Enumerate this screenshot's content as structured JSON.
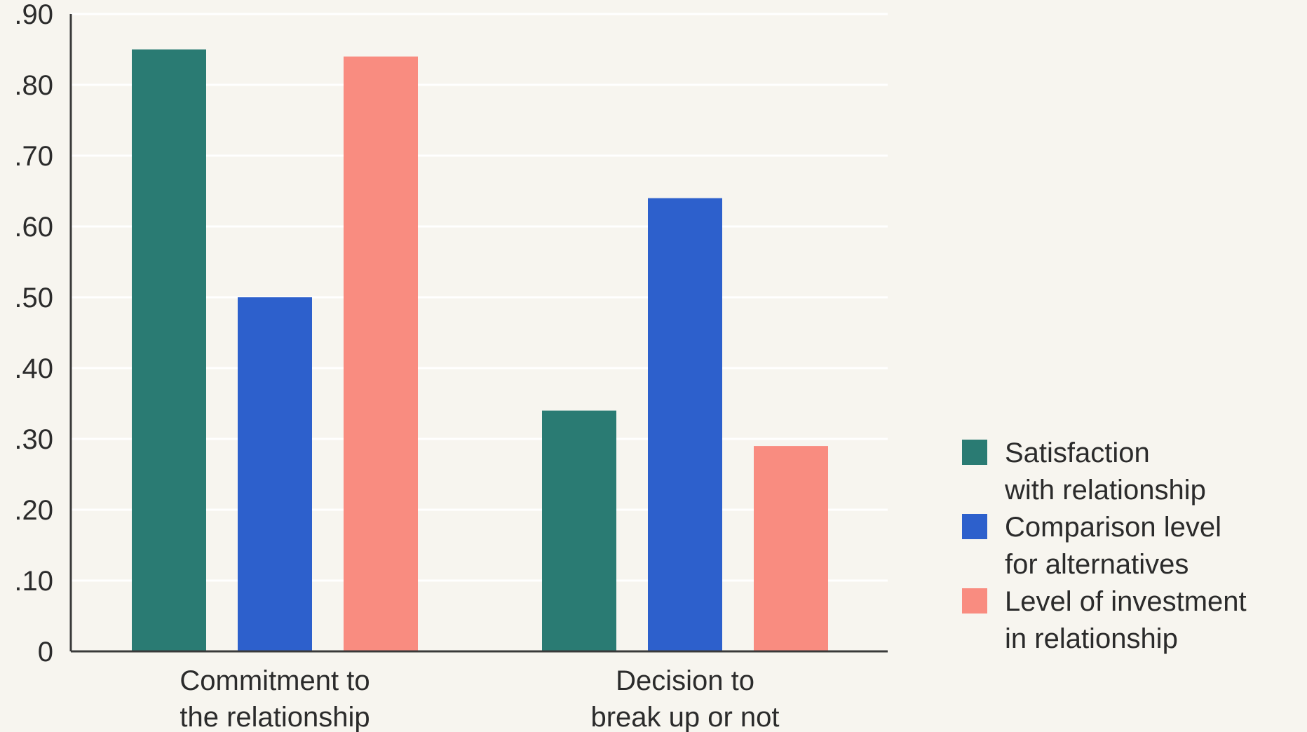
{
  "chart_data": {
    "type": "bar",
    "title": "",
    "xlabel": "",
    "ylabel": "",
    "ylim": [
      0,
      0.9
    ],
    "yticks": [
      {
        "value": 0,
        "label": "0"
      },
      {
        "value": 0.1,
        "label": ".10"
      },
      {
        "value": 0.2,
        "label": ".20"
      },
      {
        "value": 0.3,
        "label": ".30"
      },
      {
        "value": 0.4,
        "label": ".40"
      },
      {
        "value": 0.5,
        "label": ".50"
      },
      {
        "value": 0.6,
        "label": ".60"
      },
      {
        "value": 0.7,
        "label": ".70"
      },
      {
        "value": 0.8,
        "label": ".80"
      },
      {
        "value": 0.9,
        "label": ".90"
      }
    ],
    "grid": true,
    "legend_position": "right",
    "categories": [
      [
        "Commitment to",
        "the relationship"
      ],
      [
        "Decision to",
        "break up or not"
      ]
    ],
    "series": [
      {
        "name": [
          "Satisfaction",
          "with relationship"
        ],
        "color": "#2a7b73",
        "values": [
          0.85,
          0.34
        ]
      },
      {
        "name": [
          "Comparison level",
          "for alternatives"
        ],
        "color": "#2d60cc",
        "values": [
          0.5,
          0.64
        ]
      },
      {
        "name": [
          "Level of investment",
          "in relationship"
        ],
        "color": "#f98c80",
        "values": [
          0.84,
          0.29
        ]
      }
    ]
  }
}
